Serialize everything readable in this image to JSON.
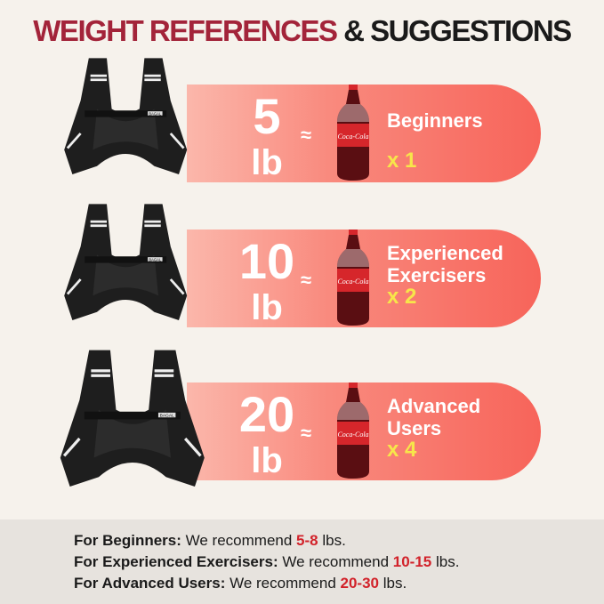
{
  "title": {
    "part1": "WEIGHT REFERENCES",
    "part2": "& SUGGESTIONS"
  },
  "colors": {
    "title_red": "#a3243a",
    "pill_start": "#fbb7ab",
    "pill_end": "#f7645a",
    "multiplier": "#f7e64a",
    "highlight": "#d2222a"
  },
  "rows": [
    {
      "weight": "5",
      "unit": "lb",
      "approx": "≈",
      "label_lines": [
        "Beginners"
      ],
      "multiplier": "x 1",
      "brand": "BAGAL",
      "bottle_logo": "Coca-Cola"
    },
    {
      "weight": "10",
      "unit": "lb",
      "approx": "≈",
      "label_lines": [
        "Experienced",
        "Exercisers"
      ],
      "multiplier": "x 2",
      "brand": "BAGAL",
      "bottle_logo": "Coca-Cola"
    },
    {
      "weight": "20",
      "unit": "lb",
      "approx": "≈",
      "label_lines": [
        "Advanced",
        "Users"
      ],
      "multiplier": "x 4",
      "brand": "BAGAL",
      "bottle_logo": "Coca-Cola"
    }
  ],
  "recommendations": [
    {
      "group": "For Beginners:",
      "text": " We recommend ",
      "range": "5-8",
      "unit": " lbs."
    },
    {
      "group": "For Experienced Exercisers:",
      "text": " We recommend ",
      "range": "10-15",
      "unit": " lbs."
    },
    {
      "group": "For Advanced Users:",
      "text": " We recommend ",
      "range": "20-30",
      "unit": " lbs."
    }
  ]
}
